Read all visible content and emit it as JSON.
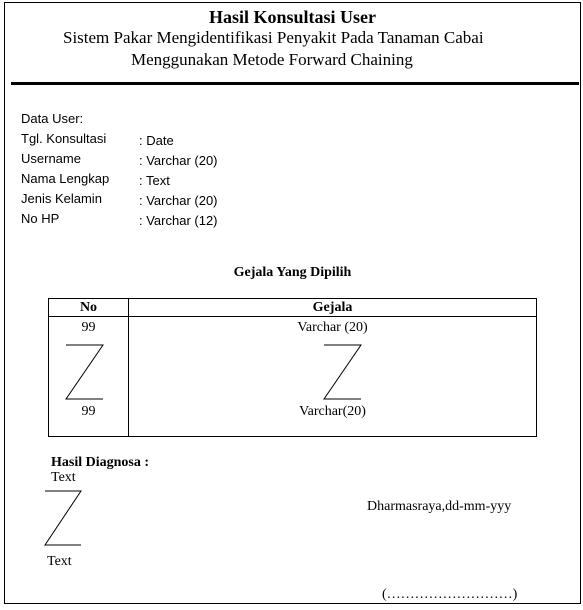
{
  "header": {
    "title": "Hasil Konsultasi User",
    "subtitle_line1": "Sistem Pakar Mengidentifikasi Penyakit Pada Tanaman Cabai",
    "subtitle_line2": "Menggunakan Metode Forward Chaining"
  },
  "user": {
    "section_label": "Data User:",
    "fields": [
      {
        "label": "Tgl. Konsultasi",
        "value": ": Date"
      },
      {
        "label": "Username",
        "value": ": Varchar (20)"
      },
      {
        "label": "Nama Lengkap",
        "value": ": Text"
      },
      {
        "label": "Jenis Kelamin",
        "value": ": Varchar (20)"
      },
      {
        "label": "No HP",
        "value": ": Varchar (12)"
      }
    ]
  },
  "gejala": {
    "heading": "Gejala Yang Dipilih",
    "col_no": "No",
    "col_gejala": "Gejala",
    "first_no": "99",
    "first_gejala": "Varchar (20)",
    "last_no": "99",
    "last_gejala": "Varchar(20)"
  },
  "diagnosa": {
    "heading": "Hasil Diagnosa :",
    "text_top": "Text",
    "text_bottom": "Text"
  },
  "footer": {
    "place_date": "Dharmasraya,dd-mm-yyy",
    "signature": "(………………………)"
  }
}
